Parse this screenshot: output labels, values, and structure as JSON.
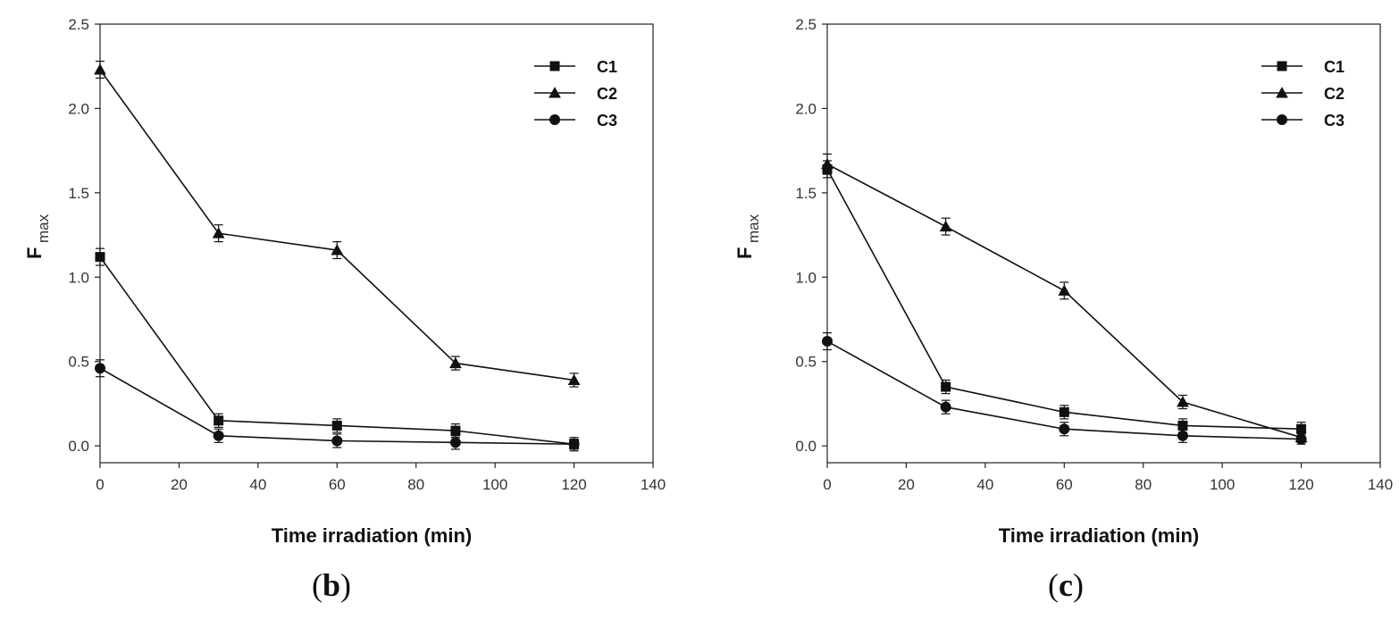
{
  "chart_data": [
    {
      "type": "line",
      "panel_label": "b",
      "paren_open": "(",
      "paren_close": ")",
      "title": "",
      "xlabel": "Time irradiation (min)",
      "ylabel": "F",
      "ylabel_sub": "max",
      "xlim": [
        0,
        140
      ],
      "ylim": [
        -0.1,
        2.5
      ],
      "xticks": [
        0,
        20,
        40,
        60,
        80,
        100,
        120,
        140
      ],
      "xtick_labels": [
        "0",
        "20",
        "40",
        "60",
        "80",
        "100",
        "120",
        "140"
      ],
      "yticks": [
        0.0,
        0.5,
        1.0,
        1.5,
        2.0,
        2.5
      ],
      "ytick_labels": [
        "0.0",
        "0.5",
        "1.0",
        "1.5",
        "2.0",
        "2.5"
      ],
      "grid": false,
      "legend_position": "top-right",
      "x": [
        0,
        30,
        60,
        90,
        120
      ],
      "series": [
        {
          "name": "C1",
          "marker": "square",
          "values": [
            1.12,
            0.15,
            0.12,
            0.09,
            0.01
          ],
          "errors": [
            0.05,
            0.04,
            0.04,
            0.04,
            0.04
          ]
        },
        {
          "name": "C2",
          "marker": "triangle",
          "values": [
            2.23,
            1.26,
            1.16,
            0.49,
            0.39
          ],
          "errors": [
            0.05,
            0.05,
            0.05,
            0.04,
            0.04
          ]
        },
        {
          "name": "C3",
          "marker": "circle",
          "values": [
            0.46,
            0.06,
            0.03,
            0.02,
            0.01
          ],
          "errors": [
            0.05,
            0.04,
            0.04,
            0.04,
            0.03
          ]
        }
      ]
    },
    {
      "type": "line",
      "panel_label": "c",
      "paren_open": "(",
      "paren_close": ")",
      "title": "",
      "xlabel": "Time irradiation (min)",
      "ylabel": "F",
      "ylabel_sub": "max",
      "xlim": [
        0,
        140
      ],
      "ylim": [
        -0.1,
        2.5
      ],
      "xticks": [
        0,
        20,
        40,
        60,
        80,
        100,
        120,
        140
      ],
      "xtick_labels": [
        "0",
        "20",
        "40",
        "60",
        "80",
        "100",
        "120",
        "140"
      ],
      "yticks": [
        0.0,
        0.5,
        1.0,
        1.5,
        2.0,
        2.5
      ],
      "ytick_labels": [
        "0.0",
        "0.5",
        "1.0",
        "1.5",
        "2.0",
        "2.5"
      ],
      "grid": false,
      "legend_position": "top-right",
      "x": [
        0,
        30,
        60,
        90,
        120
      ],
      "series": [
        {
          "name": "C1",
          "marker": "square",
          "values": [
            1.64,
            0.35,
            0.2,
            0.12,
            0.1
          ],
          "errors": [
            0.05,
            0.04,
            0.04,
            0.04,
            0.04
          ]
        },
        {
          "name": "C2",
          "marker": "triangle",
          "values": [
            1.67,
            1.3,
            0.92,
            0.26,
            0.05
          ],
          "errors": [
            0.06,
            0.05,
            0.05,
            0.04,
            0.03
          ]
        },
        {
          "name": "C3",
          "marker": "circle",
          "values": [
            0.62,
            0.23,
            0.1,
            0.06,
            0.04
          ],
          "errors": [
            0.05,
            0.04,
            0.04,
            0.04,
            0.03
          ]
        }
      ]
    }
  ]
}
